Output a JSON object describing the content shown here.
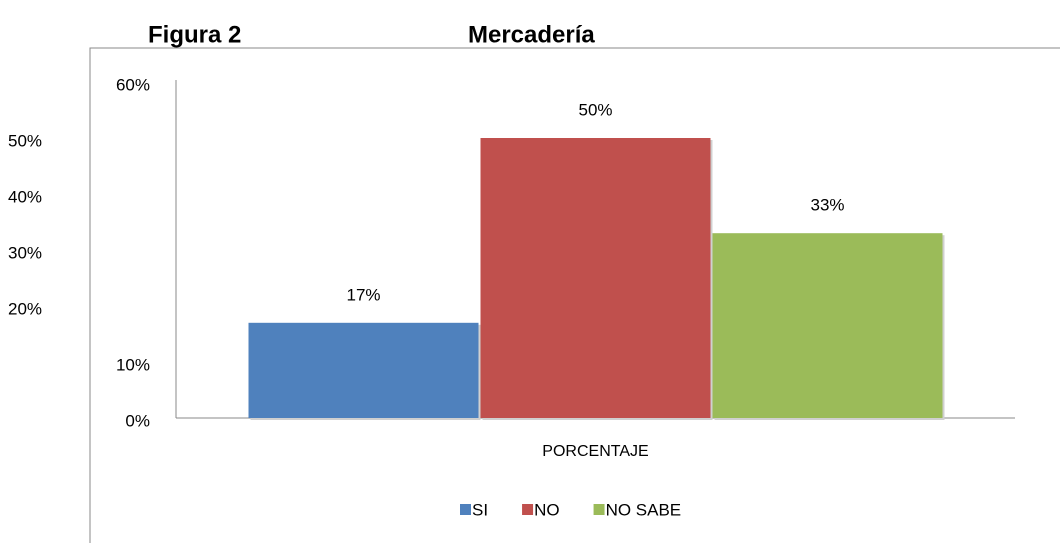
{
  "chart_data": {
    "type": "bar",
    "figure_label": "Figura 2",
    "title": "Mercadería",
    "categories": [
      "PORCENTAJE"
    ],
    "series": [
      {
        "name": "SI",
        "color": "#4f81bd",
        "values": [
          17
        ],
        "value_labels": [
          "17%"
        ]
      },
      {
        "name": "NO",
        "color": "#c0504d",
        "values": [
          50
        ],
        "value_labels": [
          "50%"
        ]
      },
      {
        "name": "NO SABE",
        "color": "#9bbb59",
        "values": [
          33
        ],
        "value_labels": [
          "33%"
        ]
      }
    ],
    "ylim": [
      0,
      60
    ],
    "yticks": [
      {
        "value": 0,
        "label": "0%"
      },
      {
        "value": 10,
        "label": "10%"
      },
      {
        "value": 20,
        "label": "20%"
      },
      {
        "value": 30,
        "label": "30%"
      },
      {
        "value": 40,
        "label": "40%"
      },
      {
        "value": 50,
        "label": "50%"
      },
      {
        "value": 60,
        "label": "60%"
      }
    ],
    "grid": false,
    "legend": "bottom"
  }
}
